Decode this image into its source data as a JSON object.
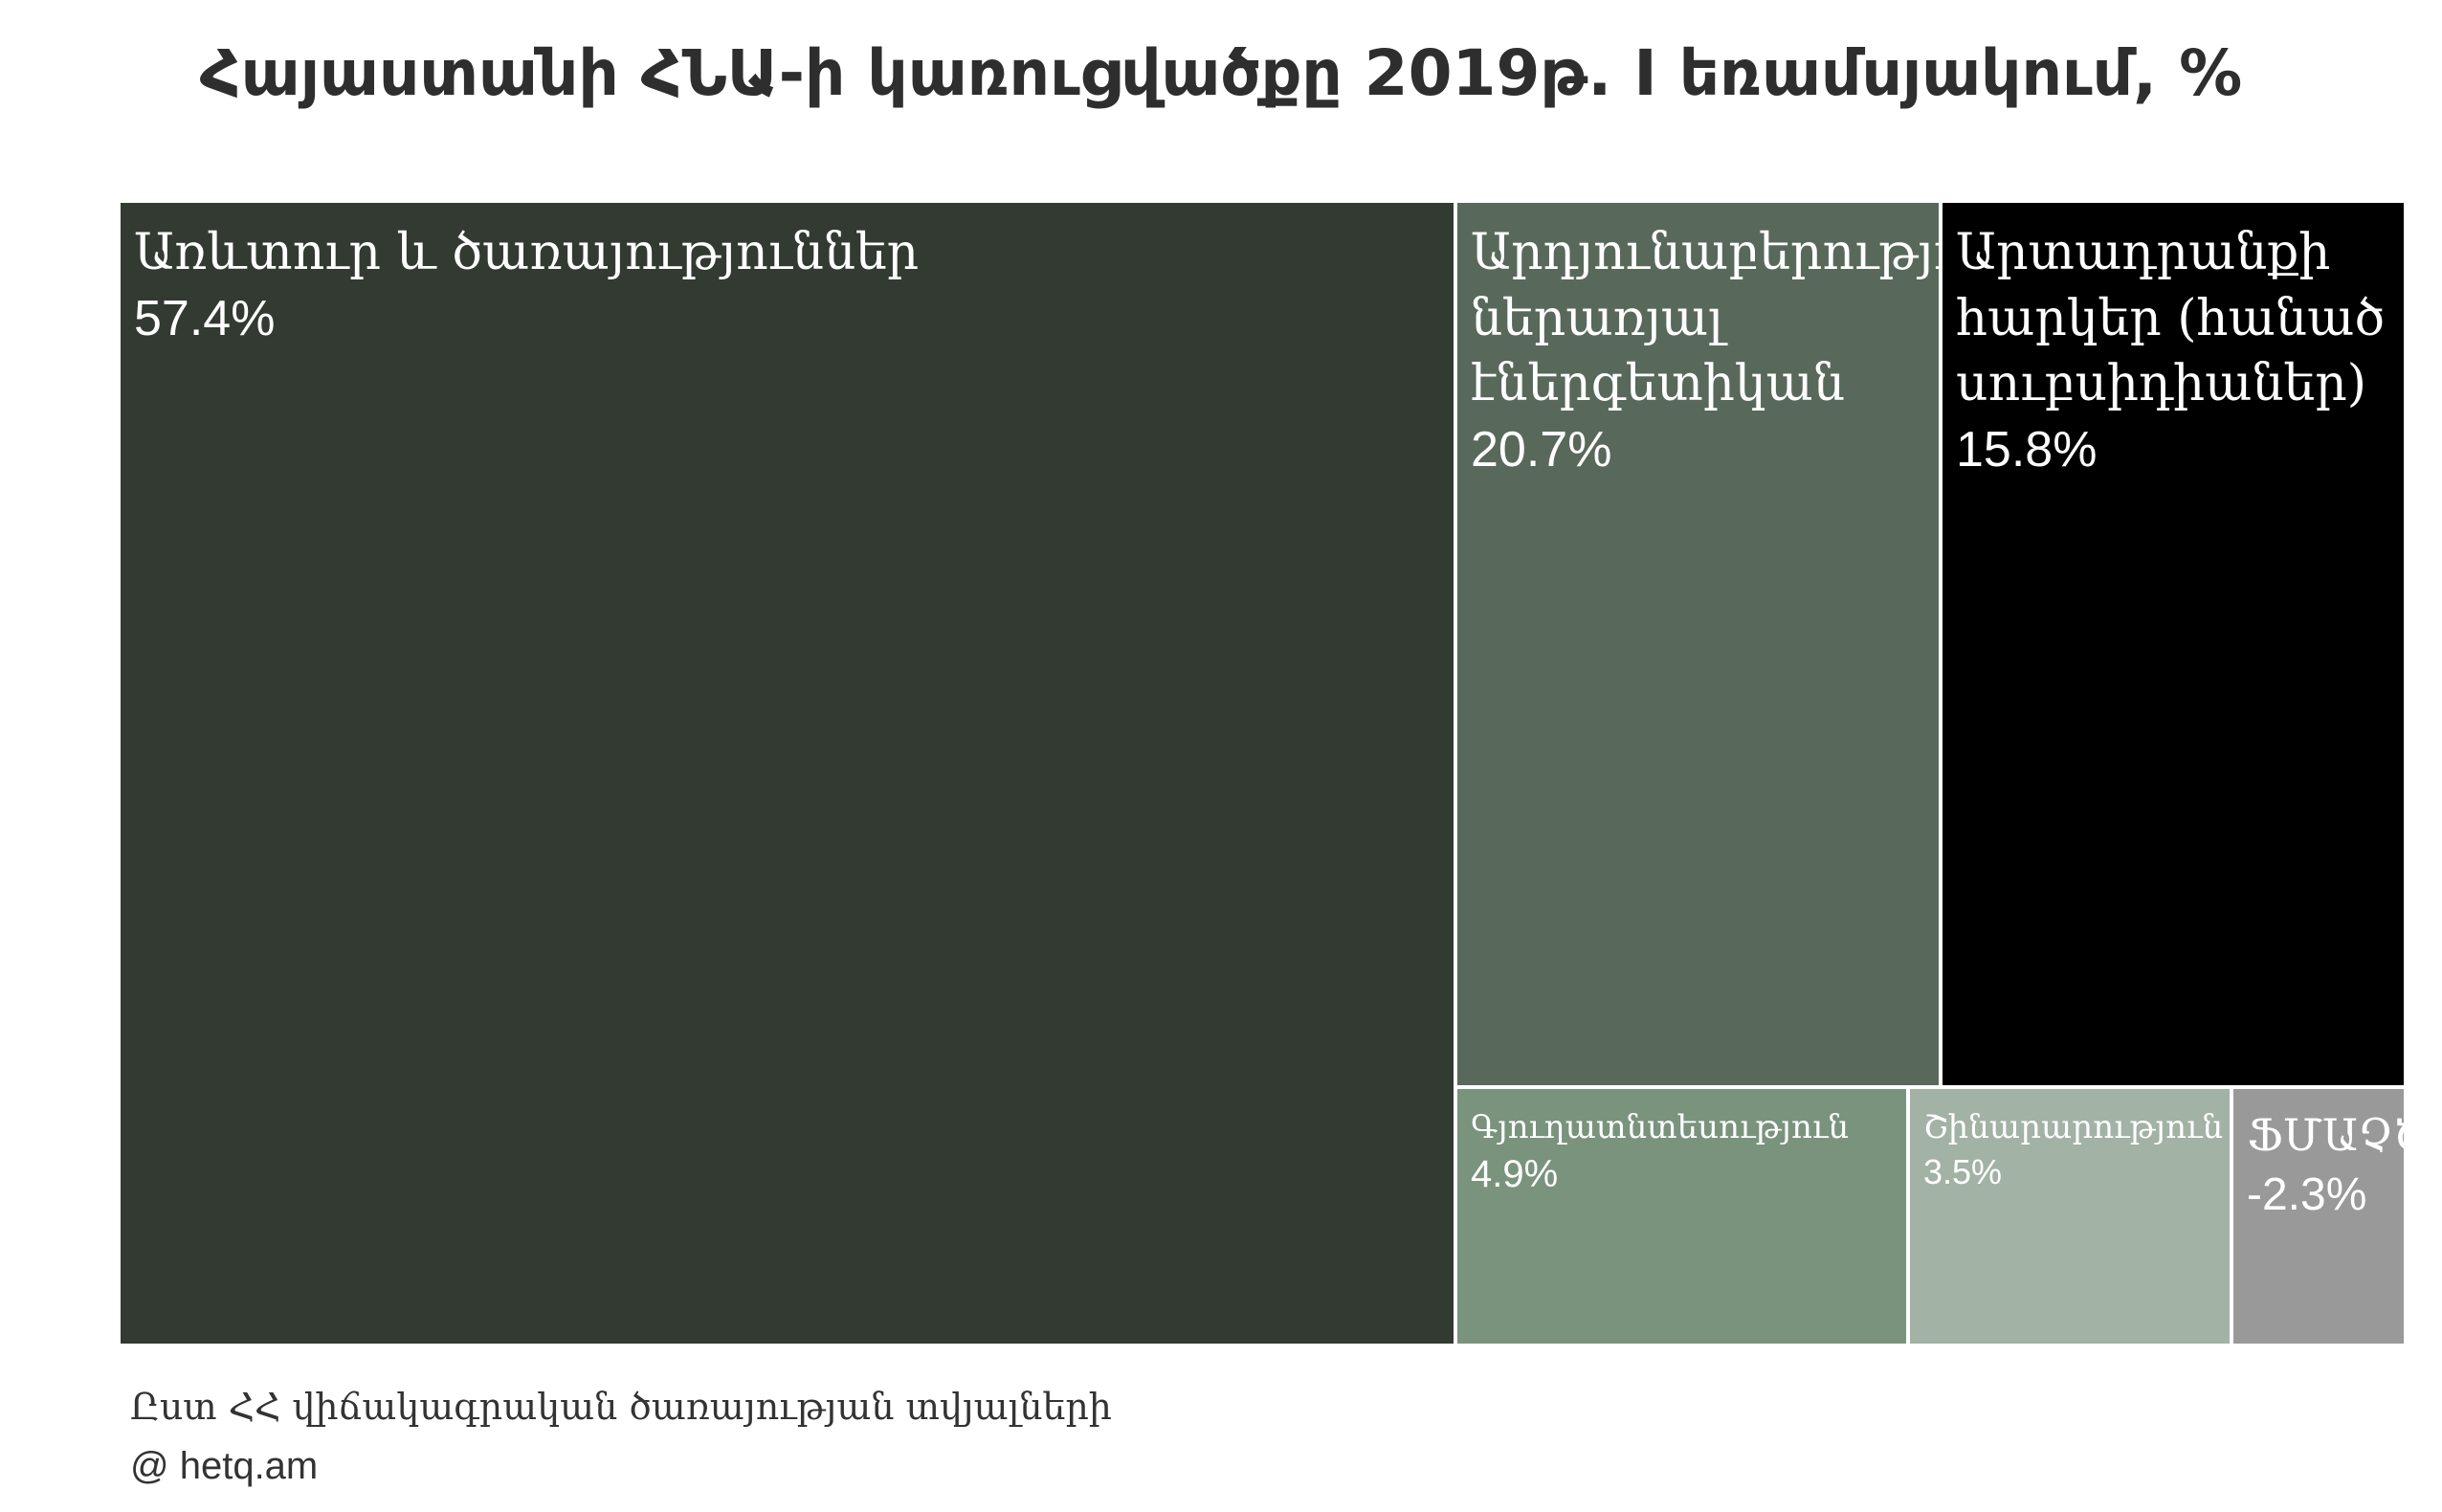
{
  "chart_data": {
    "type": "treemap",
    "title": "Հայաստանի ՀՆԱ-ի կառուցվածքը 2019թ. I եռամսյակում, %",
    "unit": "%",
    "items": [
      {
        "label": "Առևտուր և ծառայություններ",
        "value": 57.4,
        "value_text": "57.4%",
        "color": "#323a32"
      },
      {
        "label": "Արդյունաբերություն, ներառյալ էներգետիկան",
        "value": 20.7,
        "value_text": "20.7%",
        "color": "#58695b"
      },
      {
        "label": "Արտադրանքի հարկեր (հանած սուբսիդիաներ)",
        "value": 15.8,
        "value_text": "15.8%",
        "color": "#000000"
      },
      {
        "label": "Գյուղատնտեսություն",
        "value": 4.9,
        "value_text": "4.9%",
        "color": "#7a937d"
      },
      {
        "label": "Շինարարություն",
        "value": 3.5,
        "value_text": "3.5%",
        "color": "#a2b2a4"
      },
      {
        "label": "ՖՄԱՉԾ",
        "value": -2.3,
        "value_text": "-2.3%",
        "color": "#999999"
      }
    ]
  },
  "footer": {
    "source": "Ըստ ՀՀ վիճակագրական ծառայության տվյալների",
    "credit": "@ hetq.am"
  }
}
